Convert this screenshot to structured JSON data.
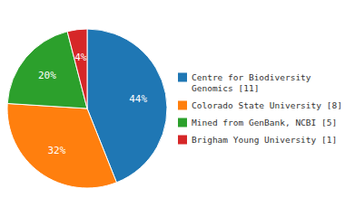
{
  "chart_data": {
    "type": "pie",
    "categories": [
      "Centre for Biodiversity\nGenomics [11]",
      "Colorado State University [8]",
      "Mined from GenBank, NCBI [5]",
      "Brigham Young University [1]"
    ],
    "values": [
      44,
      32,
      20,
      4
    ],
    "value_labels": [
      "44%",
      "32%",
      "20%",
      "4%"
    ],
    "data_labels": true,
    "legend": "right"
  }
}
